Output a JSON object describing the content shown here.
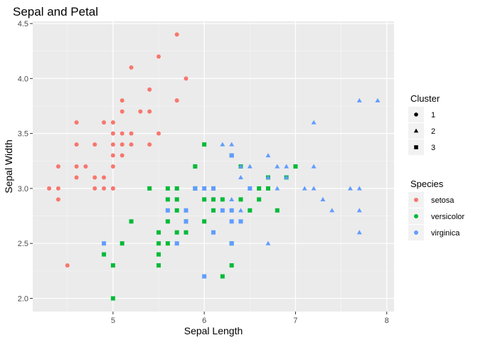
{
  "chart_data": {
    "type": "scatter",
    "title": "Sepal and Petal",
    "xlabel": "Sepal Length",
    "ylabel": "Sepal Width",
    "xlim": [
      4.3,
      7.9
    ],
    "ylim": [
      2.0,
      4.4
    ],
    "x_ticks": [
      5,
      6,
      7,
      8
    ],
    "y_ticks": [
      2.0,
      2.5,
      3.0,
      3.5,
      4.0,
      4.5
    ],
    "grid": true,
    "legend_position": "right",
    "legends": {
      "cluster": {
        "title": "Cluster",
        "labels": [
          "1",
          "2",
          "3"
        ],
        "shapes": [
          "circle",
          "triangle",
          "square"
        ]
      },
      "species": {
        "title": "Species",
        "labels": [
          "setosa",
          "versicolor",
          "virginica"
        ],
        "colors": [
          "#F8766D",
          "#00BA38",
          "#619CFF"
        ]
      }
    },
    "series": [
      {
        "name": "setosa",
        "cluster": "1",
        "shape": "circle",
        "color": "#F8766D",
        "points": [
          [
            4.3,
            3.0
          ],
          [
            4.4,
            3.2
          ],
          [
            4.4,
            3.0
          ],
          [
            4.4,
            2.9
          ],
          [
            4.5,
            2.3
          ],
          [
            4.6,
            3.6
          ],
          [
            4.6,
            3.4
          ],
          [
            4.6,
            3.2
          ],
          [
            4.6,
            3.1
          ],
          [
            4.7,
            3.2
          ],
          [
            4.8,
            3.4
          ],
          [
            4.8,
            3.1
          ],
          [
            4.8,
            3.0
          ],
          [
            4.9,
            3.6
          ],
          [
            4.9,
            3.1
          ],
          [
            4.9,
            3.0
          ],
          [
            5.0,
            3.6
          ],
          [
            5.0,
            3.5
          ],
          [
            5.0,
            3.4
          ],
          [
            5.0,
            3.3
          ],
          [
            5.0,
            3.2
          ],
          [
            5.0,
            3.0
          ],
          [
            5.1,
            3.8
          ],
          [
            5.1,
            3.7
          ],
          [
            5.1,
            3.5
          ],
          [
            5.1,
            3.4
          ],
          [
            5.1,
            3.3
          ],
          [
            5.2,
            4.1
          ],
          [
            5.2,
            3.5
          ],
          [
            5.2,
            3.4
          ],
          [
            5.3,
            3.7
          ],
          [
            5.4,
            3.9
          ],
          [
            5.4,
            3.7
          ],
          [
            5.4,
            3.4
          ],
          [
            5.5,
            4.2
          ],
          [
            5.5,
            3.5
          ],
          [
            5.7,
            4.4
          ],
          [
            5.7,
            3.8
          ],
          [
            5.8,
            4.0
          ],
          [
            5.0,
            3.0
          ]
        ]
      },
      {
        "name": "versicolor",
        "cluster": "3",
        "shape": "square",
        "color": "#00BA38",
        "points": [
          [
            4.9,
            2.4
          ],
          [
            5.0,
            2.3
          ],
          [
            5.0,
            2.0
          ],
          [
            5.1,
            2.5
          ],
          [
            5.2,
            2.7
          ],
          [
            5.4,
            3.0
          ],
          [
            5.5,
            2.6
          ],
          [
            5.5,
            2.5
          ],
          [
            5.5,
            2.4
          ],
          [
            5.5,
            2.3
          ],
          [
            5.6,
            3.0
          ],
          [
            5.6,
            2.9
          ],
          [
            5.6,
            2.7
          ],
          [
            5.6,
            2.5
          ],
          [
            5.7,
            3.0
          ],
          [
            5.7,
            2.9
          ],
          [
            5.7,
            2.8
          ],
          [
            5.7,
            2.6
          ],
          [
            5.8,
            2.7
          ],
          [
            5.8,
            2.6
          ],
          [
            5.9,
            3.2
          ],
          [
            5.9,
            3.0
          ],
          [
            6.0,
            3.4
          ],
          [
            6.0,
            2.9
          ],
          [
            6.0,
            2.7
          ],
          [
            6.1,
            3.0
          ],
          [
            6.1,
            2.9
          ],
          [
            6.1,
            2.8
          ],
          [
            6.2,
            2.9
          ],
          [
            6.2,
            2.2
          ],
          [
            6.3,
            3.3
          ],
          [
            6.3,
            2.5
          ],
          [
            6.3,
            2.3
          ],
          [
            6.4,
            3.2
          ],
          [
            6.4,
            2.9
          ],
          [
            6.5,
            2.8
          ],
          [
            6.6,
            3.0
          ],
          [
            6.6,
            2.9
          ],
          [
            6.7,
            3.1
          ],
          [
            6.7,
            3.0
          ],
          [
            6.8,
            2.8
          ],
          [
            6.9,
            3.1
          ],
          [
            7.0,
            3.2
          ]
        ]
      },
      {
        "name": "virginica",
        "cluster": "2",
        "shape": "triangle",
        "color": "#619CFF",
        "points": [
          [
            6.1,
            2.6
          ],
          [
            6.2,
            3.4
          ],
          [
            6.3,
            3.4
          ],
          [
            6.3,
            3.3
          ],
          [
            6.4,
            3.1
          ],
          [
            6.4,
            2.8
          ],
          [
            6.5,
            3.2
          ],
          [
            6.5,
            3.0
          ],
          [
            6.7,
            3.3
          ],
          [
            6.7,
            3.1
          ],
          [
            6.7,
            2.5
          ],
          [
            6.8,
            3.2
          ],
          [
            6.8,
            3.0
          ],
          [
            6.9,
            3.2
          ],
          [
            6.9,
            3.1
          ],
          [
            7.1,
            3.0
          ],
          [
            7.2,
            3.6
          ],
          [
            7.2,
            3.2
          ],
          [
            7.2,
            3.0
          ],
          [
            7.3,
            2.9
          ],
          [
            7.4,
            2.8
          ],
          [
            7.6,
            3.0
          ],
          [
            7.7,
            3.8
          ],
          [
            7.7,
            3.0
          ],
          [
            7.7,
            2.8
          ],
          [
            7.7,
            2.6
          ],
          [
            7.9,
            3.8
          ],
          [
            6.4,
            3.2
          ],
          [
            6.3,
            2.9
          ]
        ]
      },
      {
        "name": "virginica",
        "cluster": "3",
        "shape": "square",
        "color": "#619CFF",
        "points": [
          [
            4.9,
            2.5
          ],
          [
            5.6,
            2.8
          ],
          [
            5.7,
            2.5
          ],
          [
            5.8,
            2.8
          ],
          [
            5.8,
            2.7
          ],
          [
            5.9,
            3.0
          ],
          [
            6.0,
            3.0
          ],
          [
            6.0,
            2.2
          ],
          [
            6.1,
            3.0
          ],
          [
            6.1,
            2.6
          ],
          [
            6.2,
            2.8
          ],
          [
            6.3,
            2.8
          ],
          [
            6.3,
            2.7
          ],
          [
            6.3,
            2.5
          ],
          [
            6.4,
            2.7
          ],
          [
            6.5,
            3.0
          ],
          [
            6.3,
            3.3
          ]
        ]
      }
    ]
  }
}
